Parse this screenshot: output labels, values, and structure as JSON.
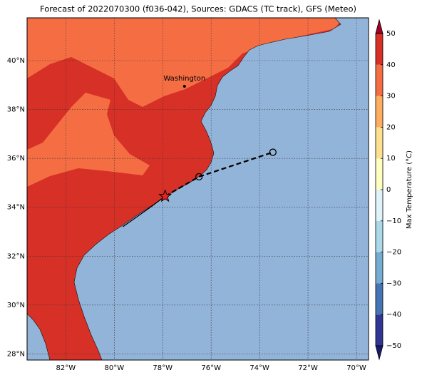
{
  "title": "Forecast of 2022070300 (f036-042), Sources: GDACS (TC track), GFS (Meteo)",
  "map": {
    "lon_range": [
      -83.6,
      -69.5
    ],
    "lat_range": [
      27.75,
      41.75
    ],
    "ocean_color": "#93b4d9",
    "land_colors": [
      "#d73027",
      "#f46d43"
    ],
    "lon_ticks": [
      {
        "value": -82,
        "label": "82°W"
      },
      {
        "value": -80,
        "label": "80°W"
      },
      {
        "value": -78,
        "label": "78°W"
      },
      {
        "value": -76,
        "label": "76°W"
      },
      {
        "value": -74,
        "label": "74°W"
      },
      {
        "value": -72,
        "label": "72°W"
      },
      {
        "value": -70,
        "label": "70°W"
      }
    ],
    "lat_ticks": [
      {
        "value": 28,
        "label": "28°N"
      },
      {
        "value": 30,
        "label": "30°N"
      },
      {
        "value": 32,
        "label": "32°N"
      },
      {
        "value": 34,
        "label": "34°N"
      },
      {
        "value": 36,
        "label": "36°N"
      },
      {
        "value": 38,
        "label": "38°N"
      },
      {
        "value": 40,
        "label": "40°N"
      }
    ],
    "cities": [
      {
        "name": "Washington",
        "lon": -77.1,
        "lat": 38.95
      }
    ],
    "track_observed": {
      "lon": [
        -79.65,
        -78.55,
        -77.9
      ],
      "lat": [
        33.2,
        33.97,
        34.45
      ]
    },
    "track_forecast": {
      "lon": [
        -77.9,
        -76.5,
        -73.45
      ],
      "lat": [
        34.45,
        35.25,
        36.25
      ]
    }
  },
  "colorbar": {
    "label": "Max Temperature (°C)",
    "ticks": [
      {
        "value": -50,
        "label": "−50"
      },
      {
        "value": -40,
        "label": "−40"
      },
      {
        "value": -30,
        "label": "−30"
      },
      {
        "value": -20,
        "label": "−20"
      },
      {
        "value": -10,
        "label": "−10"
      },
      0,
      10,
      20,
      30,
      40,
      50
    ],
    "colors": [
      "#313695",
      "#4575b4",
      "#74add1",
      "#abd9e9",
      "#e0f3f8",
      "#ffffbf",
      "#fee090",
      "#fdae61",
      "#f46d43",
      "#d73027"
    ],
    "under_color": "#1a1a6e",
    "over_color": "#a50026"
  }
}
